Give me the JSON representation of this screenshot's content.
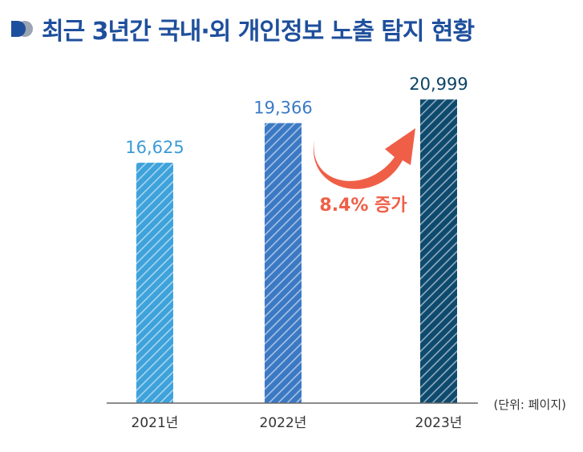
{
  "title": "최근 3년간 국내·외 개인정보 노출 탐지 현황",
  "colors": {
    "title": "#1e4f9c",
    "icon_primary": "#1e4f9c",
    "icon_secondary": "#9aa4b2",
    "bar_2021": "#3ea2db",
    "bar_2022": "#3c79c4",
    "bar_2023": "#0e4a6e",
    "label_2021": "#3b9bd6",
    "label_2022": "#3a7bc6",
    "label_2023": "#0b4466",
    "accent": "#ef5f47",
    "axis": "#666666"
  },
  "annotation": {
    "increase_label": "8.4% 증가"
  },
  "chart_data": {
    "type": "bar",
    "categories": [
      "2021년",
      "2022년",
      "2023년"
    ],
    "values": [
      16625,
      19366,
      20999
    ],
    "value_labels": [
      "16,625",
      "19,366",
      "20,999"
    ],
    "unit": "(단위: 페이지)",
    "ylim": [
      0,
      24000
    ],
    "grid": false,
    "pattern": "diagonal-hatch"
  }
}
